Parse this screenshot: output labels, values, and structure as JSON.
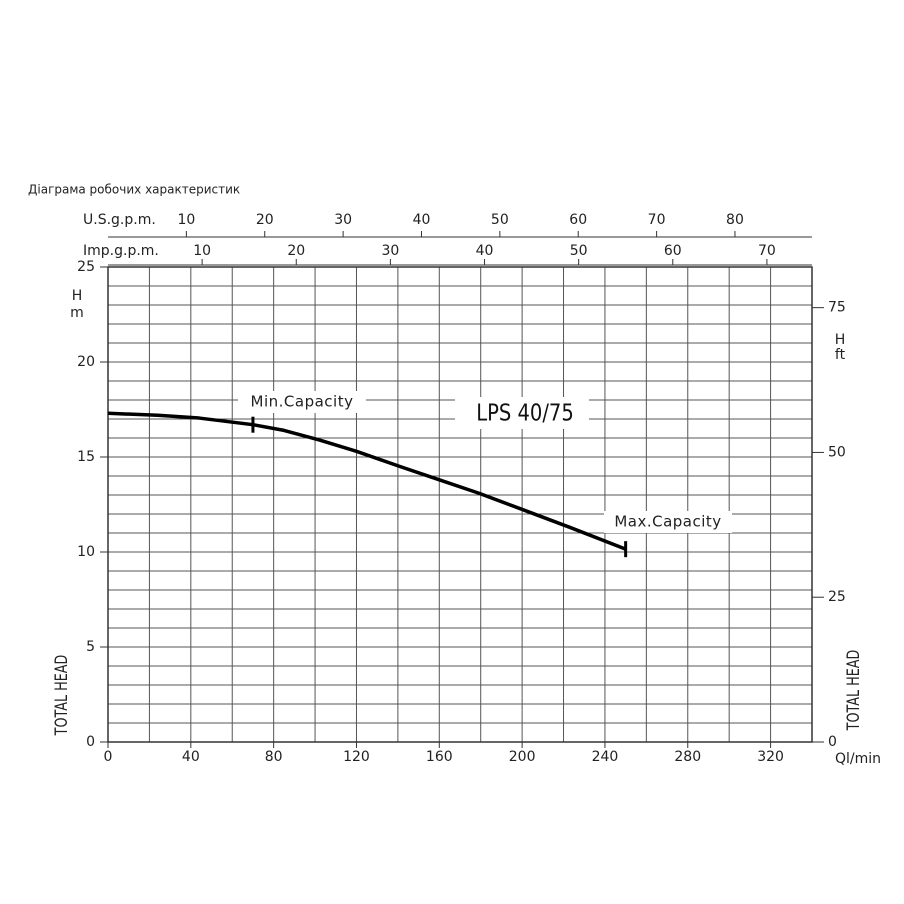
{
  "chart_data": {
    "type": "line",
    "title": "Діаграма робочих характеристик",
    "x_unit": "Ql/min",
    "y_symbol": "H",
    "y_unit": "m",
    "y_axis_title": "TOTAL HEAD",
    "y2_symbol": "H",
    "y2_unit": "ft",
    "y2_axis_title": "TOTAL HEAD",
    "x": [
      0,
      24,
      44,
      70,
      85,
      102,
      120,
      141,
      160,
      179,
      201,
      223,
      250
    ],
    "series": [
      {
        "name": "LPS 40/75",
        "color": "#000000",
        "values": [
          17.3,
          17.2,
          17.05,
          16.7,
          16.4,
          15.9,
          15.3,
          14.5,
          13.8,
          13.1,
          12.2,
          11.3,
          10.15
        ]
      }
    ],
    "xlim": [
      0,
      340
    ],
    "xticks": [
      0,
      40,
      80,
      120,
      160,
      200,
      240,
      280,
      320
    ],
    "ylim": [
      0,
      25
    ],
    "yticks": [
      0,
      5,
      10,
      15,
      20,
      25
    ],
    "y2lim": [
      0,
      82.02
    ],
    "y2ticks": [
      0,
      25,
      50,
      75
    ],
    "grid": true,
    "minor_xticks": [
      0,
      20,
      40,
      60,
      80,
      100,
      120,
      140,
      160,
      180,
      200,
      220,
      240,
      260,
      280,
      300,
      320,
      340
    ],
    "minor_yticks": [
      0,
      1,
      2,
      3,
      4,
      5,
      6,
      7,
      8,
      9,
      10,
      11,
      12,
      13,
      14,
      15,
      16,
      17,
      18,
      19,
      20,
      21,
      22,
      23,
      24,
      25
    ],
    "top_axes": [
      {
        "label": "U.S.g.p.m.",
        "xlim": [
          0,
          89.83
        ],
        "ticks": [
          10,
          20,
          30,
          40,
          50,
          60,
          70,
          80
        ]
      },
      {
        "label": "Imp.g.p.m.",
        "xlim": [
          0,
          74.79
        ],
        "ticks": [
          10,
          20,
          30,
          40,
          50,
          60,
          70
        ]
      }
    ],
    "markers": [
      {
        "label": "Min.Capacity",
        "x": 70,
        "y": 16.7
      },
      {
        "label": "Max.Capacity",
        "x": 250,
        "y": 10.15
      }
    ]
  }
}
